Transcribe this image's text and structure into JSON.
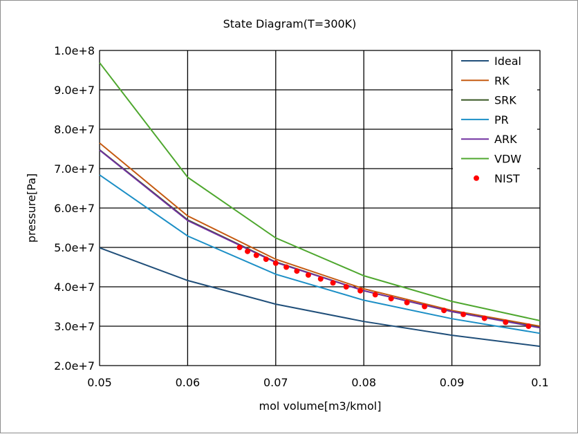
{
  "chart_data": {
    "type": "line",
    "title": "State Diagram(T=300K)",
    "xlabel": "mol volume[m3/kmol]",
    "ylabel": "pressure[Pa]",
    "xlim": [
      0.05,
      0.1
    ],
    "ylim": [
      20000000,
      100000000
    ],
    "grid": true,
    "legend_position": "top-right",
    "x_ticks": [
      0.05,
      0.06,
      0.07,
      0.08,
      0.09,
      0.1
    ],
    "x_tick_labels": [
      "0.05",
      "0.06",
      "0.07",
      "0.08",
      "0.09",
      "0.1"
    ],
    "y_ticks": [
      20000000,
      30000000,
      40000000,
      50000000,
      60000000,
      70000000,
      80000000,
      90000000,
      100000000
    ],
    "y_tick_labels": [
      "2.0e+7",
      "3.0e+7",
      "4.0e+7",
      "5.0e+7",
      "6.0e+7",
      "7.0e+7",
      "8.0e+7",
      "9.0e+7",
      "1.0e+8"
    ],
    "x": [
      0.05,
      0.06,
      0.07,
      0.08,
      0.09,
      0.1
    ],
    "series": [
      {
        "name": "Ideal",
        "color": "#1f4e79",
        "values": [
          49900000,
          41600000,
          35600000,
          31200000,
          27700000,
          24900000
        ]
      },
      {
        "name": "RK",
        "color": "#c55a11",
        "values": [
          76500000,
          58000000,
          47000000,
          39500000,
          34000000,
          30000000
        ]
      },
      {
        "name": "SRK",
        "color": "#375623",
        "values": [
          74800000,
          57000000,
          46300000,
          39000000,
          33700000,
          29700000
        ]
      },
      {
        "name": "PR",
        "color": "#1c8fc6",
        "values": [
          68400000,
          52900000,
          43200000,
          36600000,
          31900000,
          28200000
        ]
      },
      {
        "name": "ARK",
        "color": "#7030a0",
        "values": [
          74700000,
          56800000,
          46200000,
          39000000,
          33700000,
          29600000
        ]
      },
      {
        "name": "VDW",
        "color": "#4ea72e",
        "values": [
          96900000,
          67800000,
          52400000,
          42800000,
          36300000,
          31400000
        ]
      }
    ],
    "scatter_series": {
      "name": "NIST",
      "color": "#ff0000",
      "points": [
        [
          0.0659,
          50000000
        ],
        [
          0.0668,
          49000000
        ],
        [
          0.0678,
          48000000
        ],
        [
          0.0689,
          47000000
        ],
        [
          0.07,
          46000000
        ],
        [
          0.0712,
          45000000
        ],
        [
          0.0724,
          44000000
        ],
        [
          0.0737,
          43000000
        ],
        [
          0.0751,
          42000000
        ],
        [
          0.0765,
          41000000
        ],
        [
          0.078,
          40000000
        ],
        [
          0.0796,
          39000000
        ],
        [
          0.0813,
          38000000
        ],
        [
          0.0831,
          37000000
        ],
        [
          0.0849,
          36000000
        ],
        [
          0.0869,
          35000000
        ],
        [
          0.0891,
          34000000
        ],
        [
          0.0913,
          33000000
        ],
        [
          0.0937,
          32000000
        ],
        [
          0.0961,
          31000000
        ],
        [
          0.0987,
          30000000
        ]
      ]
    }
  }
}
